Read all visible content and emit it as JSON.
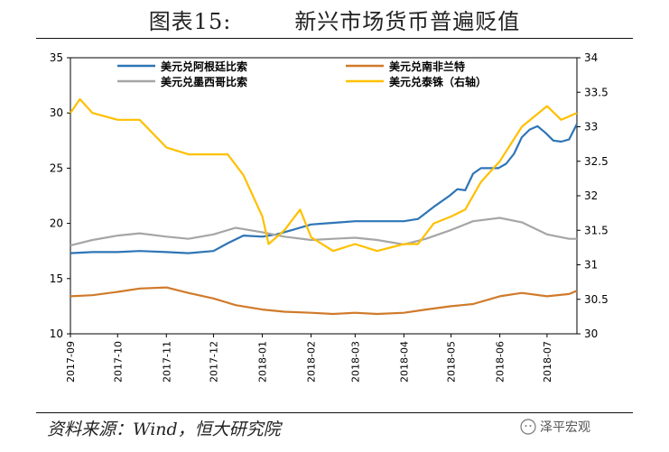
{
  "figure": {
    "number": "图表15:",
    "title": "新兴市场货币普遍贬值",
    "source": "资料来源：Wind，恒大研究院",
    "watermark": "泽平宏观"
  },
  "chart_data": {
    "type": "line",
    "xlabel": "",
    "ylabel": "",
    "x_ticks": [
      "2017-09",
      "2017-10",
      "2017-11",
      "2017-12",
      "2018-01",
      "2018-02",
      "2018-03",
      "2018-04",
      "2018-05",
      "2018-06",
      "2018-07"
    ],
    "x_range": [
      "2017-09",
      "2018-07-20"
    ],
    "y_left": {
      "range": [
        10,
        35
      ],
      "ticks": [
        10,
        15,
        20,
        25,
        30,
        35
      ]
    },
    "y_right": {
      "range": [
        30,
        34
      ],
      "ticks": [
        "30",
        "30.5",
        "31",
        "31.5",
        "32",
        "32.5",
        "33",
        "33.5",
        "34"
      ]
    },
    "legend_position": "top",
    "grid": false,
    "series": [
      {
        "name": "美元兑阿根廷比索",
        "axis": "left",
        "color": "#2E75B6",
        "points": [
          [
            "2017-09-01",
            17.3
          ],
          [
            "2017-09-15",
            17.4
          ],
          [
            "2017-10-01",
            17.4
          ],
          [
            "2017-10-15",
            17.5
          ],
          [
            "2017-11-01",
            17.4
          ],
          [
            "2017-11-15",
            17.3
          ],
          [
            "2017-12-01",
            17.5
          ],
          [
            "2017-12-10",
            18.2
          ],
          [
            "2017-12-20",
            18.9
          ],
          [
            "2018-01-01",
            18.8
          ],
          [
            "2018-01-10",
            19.0
          ],
          [
            "2018-01-20",
            19.4
          ],
          [
            "2018-02-01",
            19.9
          ],
          [
            "2018-02-10",
            20.0
          ],
          [
            "2018-02-20",
            20.1
          ],
          [
            "2018-03-01",
            20.2
          ],
          [
            "2018-03-15",
            20.2
          ],
          [
            "2018-04-01",
            20.2
          ],
          [
            "2018-04-10",
            20.4
          ],
          [
            "2018-04-20",
            21.5
          ],
          [
            "2018-04-30",
            22.5
          ],
          [
            "2018-05-05",
            23.1
          ],
          [
            "2018-05-10",
            23.0
          ],
          [
            "2018-05-15",
            24.5
          ],
          [
            "2018-05-20",
            25.0
          ],
          [
            "2018-05-31",
            25.0
          ],
          [
            "2018-06-05",
            25.4
          ],
          [
            "2018-06-10",
            26.3
          ],
          [
            "2018-06-15",
            27.8
          ],
          [
            "2018-06-20",
            28.5
          ],
          [
            "2018-06-25",
            28.8
          ],
          [
            "2018-06-30",
            28.2
          ],
          [
            "2018-07-05",
            27.5
          ],
          [
            "2018-07-10",
            27.4
          ],
          [
            "2018-07-15",
            27.6
          ],
          [
            "2018-07-20",
            29.0
          ]
        ]
      },
      {
        "name": "美元兑南非兰特",
        "axis": "left",
        "color": "#D07A2A",
        "points": [
          [
            "2017-09-01",
            13.4
          ],
          [
            "2017-09-15",
            13.5
          ],
          [
            "2017-10-01",
            13.8
          ],
          [
            "2017-10-15",
            14.1
          ],
          [
            "2017-11-01",
            14.2
          ],
          [
            "2017-11-15",
            13.7
          ],
          [
            "2017-12-01",
            13.2
          ],
          [
            "2017-12-15",
            12.6
          ],
          [
            "2018-01-01",
            12.2
          ],
          [
            "2018-01-15",
            12.0
          ],
          [
            "2018-02-01",
            11.9
          ],
          [
            "2018-02-15",
            11.8
          ],
          [
            "2018-03-01",
            11.9
          ],
          [
            "2018-03-15",
            11.8
          ],
          [
            "2018-04-01",
            11.9
          ],
          [
            "2018-04-15",
            12.2
          ],
          [
            "2018-05-01",
            12.5
          ],
          [
            "2018-05-15",
            12.7
          ],
          [
            "2018-06-01",
            13.4
          ],
          [
            "2018-06-15",
            13.7
          ],
          [
            "2018-07-01",
            13.4
          ],
          [
            "2018-07-15",
            13.6
          ],
          [
            "2018-07-20",
            13.9
          ]
        ]
      },
      {
        "name": "美元兑墨西哥比索",
        "axis": "left",
        "color": "#A6A6A6",
        "points": [
          [
            "2017-09-01",
            18.0
          ],
          [
            "2017-09-15",
            18.5
          ],
          [
            "2017-10-01",
            18.9
          ],
          [
            "2017-10-15",
            19.1
          ],
          [
            "2017-11-01",
            18.8
          ],
          [
            "2017-11-15",
            18.6
          ],
          [
            "2017-12-01",
            19.0
          ],
          [
            "2017-12-15",
            19.6
          ],
          [
            "2018-01-01",
            19.2
          ],
          [
            "2018-01-15",
            18.8
          ],
          [
            "2018-02-01",
            18.5
          ],
          [
            "2018-02-15",
            18.6
          ],
          [
            "2018-03-01",
            18.7
          ],
          [
            "2018-03-15",
            18.5
          ],
          [
            "2018-04-01",
            18.1
          ],
          [
            "2018-04-15",
            18.6
          ],
          [
            "2018-05-01",
            19.4
          ],
          [
            "2018-05-15",
            20.2
          ],
          [
            "2018-06-01",
            20.5
          ],
          [
            "2018-06-15",
            20.1
          ],
          [
            "2018-07-01",
            19.0
          ],
          [
            "2018-07-15",
            18.6
          ],
          [
            "2018-07-20",
            18.6
          ]
        ]
      },
      {
        "name": "美元兑泰铢（右轴）",
        "axis": "right",
        "color": "#FFC000",
        "points": [
          [
            "2017-09-01",
            33.2
          ],
          [
            "2017-09-07",
            33.4
          ],
          [
            "2017-09-15",
            33.2
          ],
          [
            "2017-10-01",
            33.1
          ],
          [
            "2017-10-15",
            33.1
          ],
          [
            "2017-11-01",
            32.7
          ],
          [
            "2017-11-15",
            32.6
          ],
          [
            "2017-12-01",
            32.6
          ],
          [
            "2017-12-10",
            32.6
          ],
          [
            "2017-12-20",
            32.3
          ],
          [
            "2018-01-01",
            31.7
          ],
          [
            "2018-01-05",
            31.3
          ],
          [
            "2018-01-15",
            31.5
          ],
          [
            "2018-01-25",
            31.8
          ],
          [
            "2018-02-01",
            31.4
          ],
          [
            "2018-02-15",
            31.2
          ],
          [
            "2018-03-01",
            31.3
          ],
          [
            "2018-03-15",
            31.2
          ],
          [
            "2018-04-01",
            31.3
          ],
          [
            "2018-04-10",
            31.3
          ],
          [
            "2018-04-20",
            31.6
          ],
          [
            "2018-05-01",
            31.7
          ],
          [
            "2018-05-10",
            31.8
          ],
          [
            "2018-05-20",
            32.2
          ],
          [
            "2018-06-01",
            32.5
          ],
          [
            "2018-06-15",
            33.0
          ],
          [
            "2018-07-01",
            33.3
          ],
          [
            "2018-07-10",
            33.1
          ],
          [
            "2018-07-20",
            33.2
          ]
        ]
      }
    ]
  }
}
